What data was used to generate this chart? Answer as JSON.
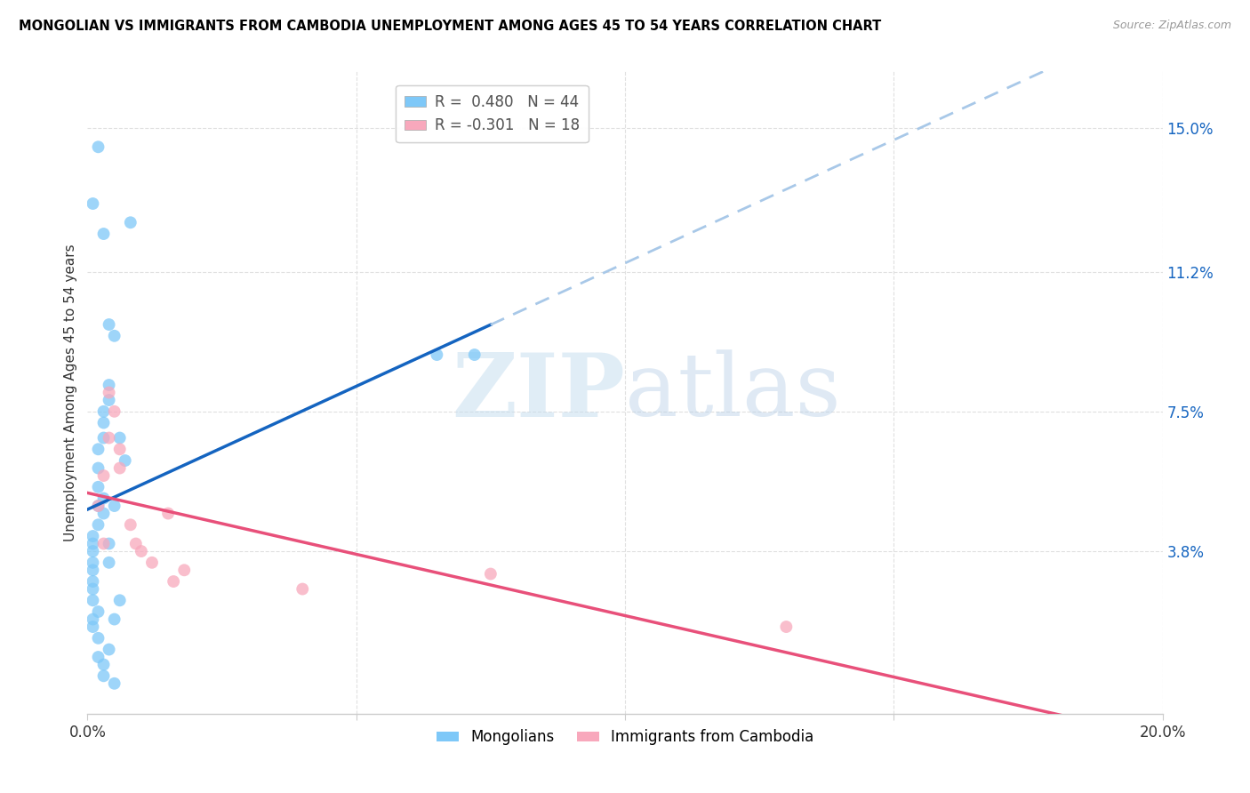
{
  "title": "MONGOLIAN VS IMMIGRANTS FROM CAMBODIA UNEMPLOYMENT AMONG AGES 45 TO 54 YEARS CORRELATION CHART",
  "source": "Source: ZipAtlas.com",
  "ylabel": "Unemployment Among Ages 45 to 54 years",
  "xlim": [
    0.0,
    0.2
  ],
  "ylim": [
    -0.005,
    0.165
  ],
  "xticks": [
    0.0,
    0.05,
    0.1,
    0.15,
    0.2
  ],
  "xticklabels": [
    "0.0%",
    "",
    "",
    "",
    "20.0%"
  ],
  "yticks_right": [
    0.038,
    0.075,
    0.112,
    0.15
  ],
  "yticklabels_right": [
    "3.8%",
    "7.5%",
    "11.2%",
    "15.0%"
  ],
  "mongolians_x": [
    0.001,
    0.001,
    0.001,
    0.001,
    0.001,
    0.001,
    0.001,
    0.001,
    0.001,
    0.001,
    0.002,
    0.002,
    0.002,
    0.002,
    0.002,
    0.002,
    0.002,
    0.002,
    0.003,
    0.003,
    0.003,
    0.003,
    0.003,
    0.003,
    0.003,
    0.004,
    0.004,
    0.004,
    0.004,
    0.004,
    0.005,
    0.005,
    0.005,
    0.006,
    0.006,
    0.007,
    0.008,
    0.065,
    0.072,
    0.001,
    0.002,
    0.003,
    0.004,
    0.005
  ],
  "mongolians_y": [
    0.02,
    0.025,
    0.03,
    0.033,
    0.035,
    0.038,
    0.04,
    0.042,
    0.028,
    0.018,
    0.045,
    0.05,
    0.055,
    0.06,
    0.065,
    0.022,
    0.015,
    0.01,
    0.068,
    0.072,
    0.075,
    0.052,
    0.048,
    0.008,
    0.005,
    0.078,
    0.082,
    0.04,
    0.035,
    0.012,
    0.095,
    0.05,
    0.02,
    0.068,
    0.025,
    0.062,
    0.125,
    0.09,
    0.09,
    0.13,
    0.145,
    0.122,
    0.098,
    0.003
  ],
  "cambodia_x": [
    0.002,
    0.003,
    0.004,
    0.004,
    0.005,
    0.006,
    0.008,
    0.009,
    0.01,
    0.012,
    0.015,
    0.016,
    0.018,
    0.04,
    0.075,
    0.13,
    0.003,
    0.006
  ],
  "cambodia_y": [
    0.05,
    0.058,
    0.068,
    0.08,
    0.075,
    0.06,
    0.045,
    0.04,
    0.038,
    0.035,
    0.048,
    0.03,
    0.033,
    0.028,
    0.032,
    0.018,
    0.04,
    0.065
  ],
  "mongolian_color": "#7EC8F8",
  "cambodia_color": "#F8A8BC",
  "mongolian_line_color": "#1464C0",
  "cambodia_line_color": "#E8507A",
  "trendline_dashed_color": "#A8C8E8",
  "R_mongolian": "0.480",
  "N_mongolian": "44",
  "R_cambodia": "-0.301",
  "N_cambodia": "18",
  "legend_mongolians": "Mongolians",
  "legend_cambodia": "Immigrants from Cambodia",
  "watermark_zip": "ZIP",
  "watermark_atlas": "atlas",
  "grid_color": "#e0e0e0"
}
